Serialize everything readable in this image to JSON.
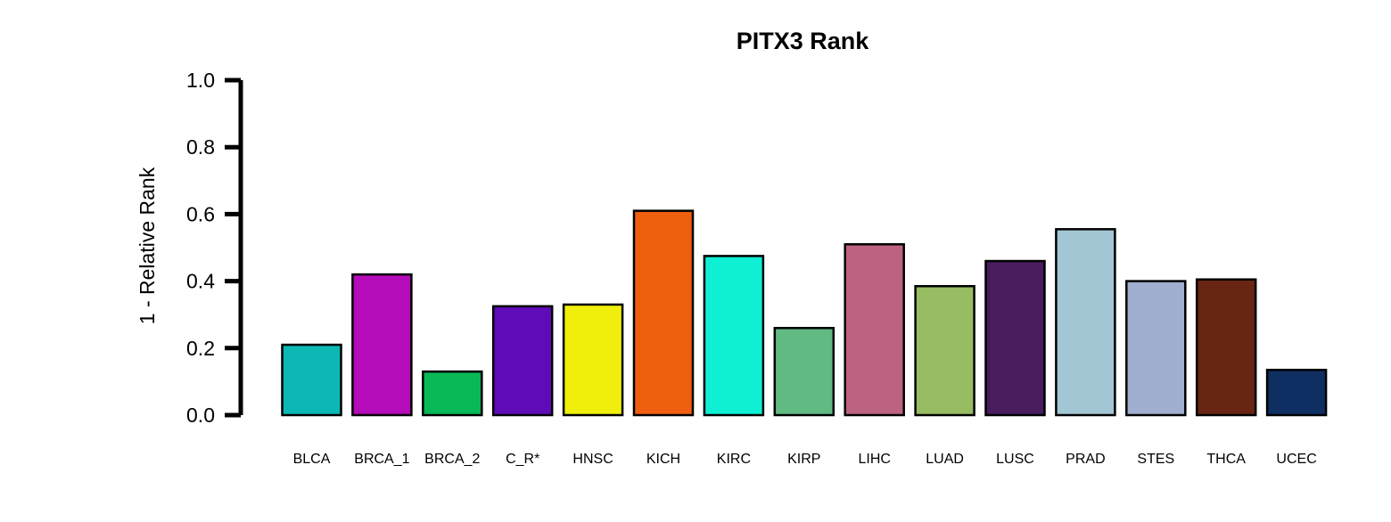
{
  "chart_data": {
    "type": "bar",
    "title": "PITX3 Rank",
    "xlabel": "",
    "ylabel": "1 - Relative Rank",
    "ylim": [
      0,
      1
    ],
    "yticks": [
      "0.0",
      "0.2",
      "0.4",
      "0.6",
      "0.8",
      "1.0"
    ],
    "grid": false,
    "legend": "none",
    "categories": [
      "BLCA",
      "BRCA_1",
      "BRCA_2",
      "C_R*",
      "HNSC",
      "KICH",
      "KIRC",
      "KIRP",
      "LIHC",
      "LUAD",
      "LUSC",
      "PRAD",
      "STES",
      "THCA",
      "UCEC"
    ],
    "values": [
      0.21,
      0.42,
      0.13,
      0.325,
      0.33,
      0.61,
      0.475,
      0.26,
      0.51,
      0.385,
      0.46,
      0.555,
      0.4,
      0.405,
      0.135
    ],
    "colors": [
      "#0BB8B3",
      "#B40CB8",
      "#09B856",
      "#5E0CB8",
      "#EFEF0B",
      "#F05F0F",
      "#0FEFD3",
      "#61BA81",
      "#BE6282",
      "#97BC62",
      "#491C5E",
      "#A2C6D4",
      "#A0AED0",
      "#672512",
      "#0F2E62"
    ]
  }
}
